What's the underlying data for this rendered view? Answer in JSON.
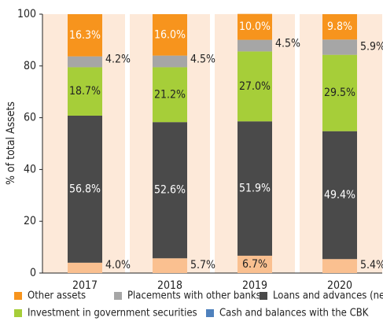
{
  "chart_data": {
    "type": "stacked-bar",
    "y_label": "% of total Assets",
    "categories": [
      "2017",
      "2018",
      "2019",
      "2020"
    ],
    "ylim": [
      0,
      100
    ],
    "yticks": [
      0,
      20,
      40,
      60,
      80,
      100
    ],
    "background": "#fde9d9",
    "series": [
      {
        "name": "Cash and balances with the CBK",
        "color": "#fac090",
        "legend_color": "#4f81bd",
        "label_color": "#222222",
        "values": [
          4.0,
          5.7,
          6.7,
          5.4
        ],
        "value_labels": [
          "4.0%",
          "5.7%",
          "6.7%",
          "5.4%"
        ]
      },
      {
        "name": "Loans and advances (net)",
        "color": "#4a4a4a",
        "label_color": "#ffffff",
        "values": [
          56.8,
          52.6,
          51.9,
          49.4
        ],
        "value_labels": [
          "56.8%",
          "52.6%",
          "51.9%",
          "49.4%"
        ]
      },
      {
        "name": "Investment in government securities",
        "color": "#a6ce39",
        "label_color": "#222222",
        "values": [
          18.7,
          21.2,
          27.0,
          29.5
        ],
        "value_labels": [
          "18.7%",
          "21.2%",
          "27.0%",
          "29.5%"
        ]
      },
      {
        "name": "Placements with other banks",
        "color": "#a6a6a6",
        "label_color": "#222222",
        "values": [
          4.2,
          4.5,
          4.5,
          5.9
        ],
        "value_labels": [
          "4.2%",
          "4.5%",
          "4.5%",
          "5.9%"
        ]
      },
      {
        "name": "Other assets",
        "color": "#f7941d",
        "label_color": "#ffffff",
        "values": [
          16.3,
          16.0,
          10.0,
          9.8
        ],
        "value_labels": [
          "16.3%",
          "16.0%",
          "10.0%",
          "9.8%"
        ]
      }
    ],
    "legend_order": [
      4,
      3,
      1,
      2,
      0
    ]
  }
}
